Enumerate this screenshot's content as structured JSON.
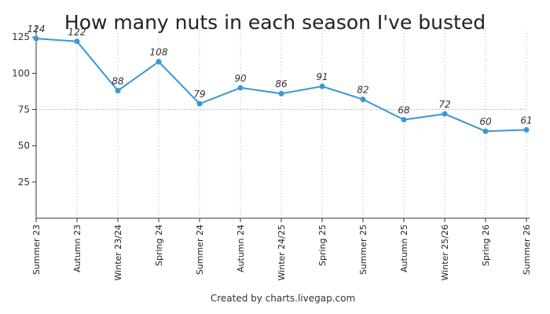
{
  "chart_data": {
    "type": "line",
    "title": "How many nuts in each season I've busted",
    "categories": [
      "Summer 23",
      "Autumn 23",
      "Winter 23/24",
      "Spring 24",
      "Summer 24",
      "Autumn 24",
      "Winter 24/25",
      "Spring 25",
      "Summer 25",
      "Autumn 25",
      "Winter 25/26",
      "Spring 26",
      "Summer 26"
    ],
    "series": [
      {
        "values": [
          124,
          122,
          88,
          108,
          79,
          90,
          86,
          91,
          82,
          68,
          72,
          60,
          61
        ]
      }
    ],
    "yticks": [
      25,
      50,
      75,
      100,
      125
    ],
    "ylim": [
      0,
      130
    ],
    "xlabel": "",
    "ylabel": "",
    "grid": "vertical dotted lines at each category; dashed reference line at 75",
    "reference_line": 75,
    "data_labels": true,
    "colors": {
      "line": "#3a97d4",
      "axis": "#333333",
      "grid": "#b5b5b5",
      "reference": "#bdbdbd"
    }
  },
  "credit": "Created by charts.livegap.com"
}
